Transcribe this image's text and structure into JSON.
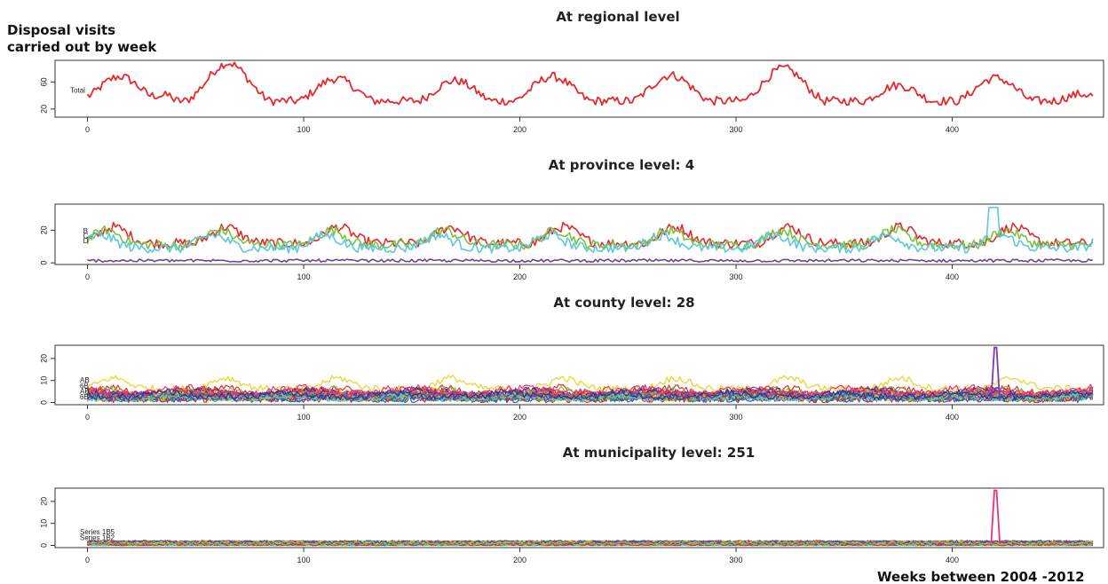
{
  "y_axis_caption_line1": "Disposal visits",
  "y_axis_caption_line2": "carried out by week",
  "x_axis_caption": "Weeks between 2004 -2012",
  "chart_data": [
    {
      "type": "line",
      "title": "At regional level",
      "xlabel": "",
      "ylabel": "",
      "xlim": [
        -15,
        470
      ],
      "ylim": [
        8,
        92
      ],
      "x_ticks": [
        0,
        100,
        200,
        300,
        400
      ],
      "y_ticks": [
        20,
        60
      ],
      "grid": false,
      "x": "weeks 0..465",
      "series": [
        {
          "name": "Total",
          "color": "#e8282b",
          "base": 40,
          "peaks": [
            [
              15,
              68
            ],
            [
              65,
              88
            ],
            [
              115,
              65
            ],
            [
              170,
              62
            ],
            [
              215,
              68
            ],
            [
              270,
              70
            ],
            [
              322,
              80
            ],
            [
              375,
              55
            ],
            [
              420,
              66
            ],
            [
              460,
              42
            ]
          ],
          "trough": 22,
          "noise": 4
        }
      ]
    },
    {
      "type": "line",
      "title": "At province level: 4",
      "xlabel": "",
      "ylabel": "",
      "xlim": [
        -15,
        470
      ],
      "ylim": [
        -1,
        36
      ],
      "x_ticks": [
        0,
        100,
        200,
        300,
        400
      ],
      "y_ticks": [
        0,
        20
      ],
      "grid": false,
      "series_labels": [
        "B",
        "C",
        "D"
      ],
      "series": [
        {
          "name": "B",
          "color": "#e8282b",
          "base": 12,
          "amp": 10,
          "noise": 3
        },
        {
          "name": "C",
          "color": "#7cc242",
          "base": 11,
          "amp": 9,
          "noise": 3
        },
        {
          "name": "D",
          "color": "#5bc8dc",
          "base": 9,
          "amp": 8,
          "noise": 3
        },
        {
          "name": "",
          "color": "#6a44a0",
          "base": 1,
          "amp": 1,
          "noise": 1
        }
      ]
    },
    {
      "type": "line",
      "title": "At county level: 28",
      "xlabel": "",
      "ylabel": "",
      "xlim": [
        -15,
        470
      ],
      "ylim": [
        -1,
        26
      ],
      "x_ticks": [
        0,
        100,
        200,
        300,
        400
      ],
      "y_ticks": [
        0,
        10,
        20
      ],
      "grid": false,
      "series_labels": [
        "AB",
        "6B",
        "AB",
        "6B"
      ],
      "series_count": 28,
      "colors": [
        "#f0d020",
        "#e8282b",
        "#2e5cb8",
        "#7cc242",
        "#5bc8dc",
        "#6a44a0",
        "#ee2e7a",
        "#1e3c8c",
        "#f08020",
        "#20a090"
      ],
      "spike": {
        "x": 420,
        "y": 25,
        "color": "#7a3cb0"
      }
    },
    {
      "type": "line",
      "title": "At  municipality level: 251",
      "xlabel": "",
      "ylabel": "",
      "xlim": [
        -15,
        470
      ],
      "ylim": [
        -1,
        26
      ],
      "x_ticks": [
        0,
        100,
        200,
        300,
        400
      ],
      "y_ticks": [
        0,
        10,
        20
      ],
      "grid": false,
      "series_labels": [
        "Series 1B5",
        "Series 1B2"
      ],
      "series_count": 251,
      "colors": [
        "#5bc8dc",
        "#e8282b",
        "#2e5cb8",
        "#7cc242",
        "#ee2e7a",
        "#6a44a0",
        "#f0d020"
      ],
      "spike": {
        "x": 420,
        "y": 25,
        "color": "#ee2e7a"
      }
    }
  ]
}
